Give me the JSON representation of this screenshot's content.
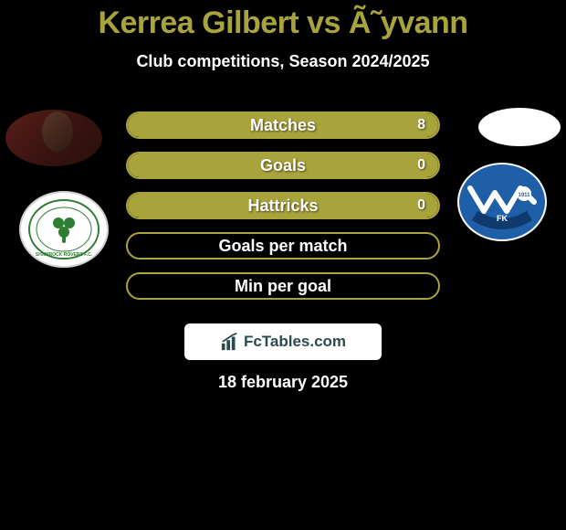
{
  "title": "Kerrea Gilbert vs Ã˜yvann",
  "subtitle": "Club competitions, Season 2024/2025",
  "date": "18 february 2025",
  "brand": "FcTables.com",
  "colors": {
    "accent": "#a9a33c",
    "background": "#000000",
    "text": "#ffffff",
    "club2_blue": "#1f5fa8",
    "club2_dark": "#0e3a6e",
    "club1_green": "#2e7d32",
    "club1_border": "#cfd4cc",
    "brand_text": "#2c4a52"
  },
  "bars": [
    {
      "label": "Matches",
      "value": "8",
      "fill_pct": 100
    },
    {
      "label": "Goals",
      "value": "0",
      "fill_pct": 100
    },
    {
      "label": "Hattricks",
      "value": "0",
      "fill_pct": 100
    },
    {
      "label": "Goals per match",
      "value": "",
      "fill_pct": 0
    },
    {
      "label": "Min per goal",
      "value": "",
      "fill_pct": 0
    }
  ]
}
